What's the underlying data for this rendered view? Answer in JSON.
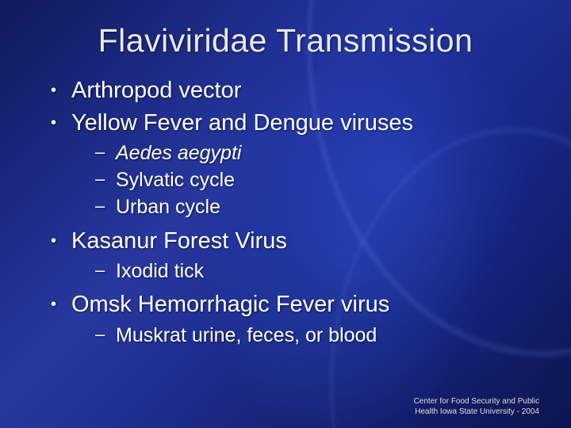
{
  "slide": {
    "title": "Flaviviridae Transmission",
    "background_colors": {
      "gradient_start": "#101a5c",
      "gradient_mid1": "#1a2880",
      "gradient_mid2": "#2838a0",
      "gradient_mid3": "#1e2e90",
      "gradient_end": "#0d1550"
    },
    "title_color": "#e8e8e8",
    "text_color": "#ffffff",
    "title_fontsize": 41,
    "body_fontsize": 29,
    "sub_fontsize": 25,
    "bullets": [
      {
        "text": "Arthropod vector",
        "sub": []
      },
      {
        "text": "Yellow Fever and Dengue viruses",
        "sub": [
          {
            "prefix_italic": "Aedes aegypti",
            "rest": ""
          },
          {
            "prefix_italic": "",
            "rest": "Sylvatic cycle"
          },
          {
            "prefix_italic": "",
            "rest": "Urban cycle"
          }
        ]
      },
      {
        "text": "Kasanur Forest Virus",
        "sub": [
          {
            "prefix_italic": "",
            "rest": "Ixodid tick"
          }
        ]
      },
      {
        "text": "Omsk Hemorrhagic Fever virus",
        "sub": [
          {
            "prefix_italic": "",
            "rest": "Muskrat urine, feces, or blood"
          }
        ]
      }
    ],
    "footer": {
      "line1": "Center for Food Security and Public",
      "line2": "Health    Iowa State University  -  2004",
      "fontsize": 10,
      "color": "#e0e0f0"
    }
  }
}
